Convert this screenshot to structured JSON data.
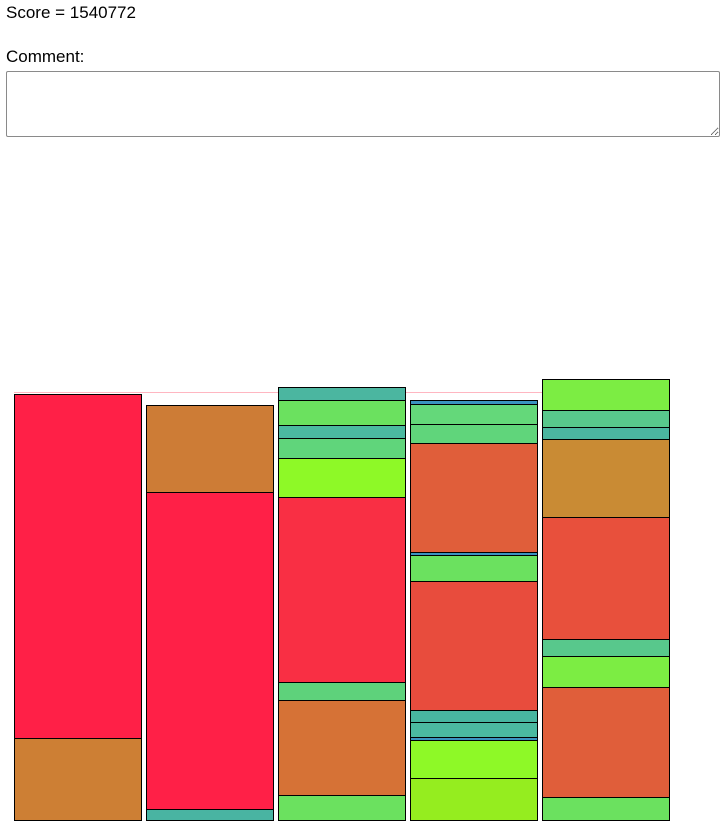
{
  "score_label": "Score = 1540772",
  "comment": {
    "label": "Comment:",
    "value": "",
    "placeholder": ""
  },
  "board": {
    "limit_line_color": "#ffb6c1",
    "block_border_color": "#000000",
    "columns": [
      {
        "blocks": [
          {
            "size": 344,
            "color": "#ff2047"
          },
          {
            "size": 82,
            "color": "#cd7f34"
          }
        ]
      },
      {
        "blocks": [
          {
            "size": 87,
            "color": "#cd7c36"
          },
          {
            "size": 317,
            "color": "#ff2047"
          },
          {
            "size": 11,
            "color": "#49b4a2"
          }
        ]
      },
      {
        "blocks": [
          {
            "size": 13,
            "color": "#4bb6a0"
          },
          {
            "size": 25,
            "color": "#6be15f"
          },
          {
            "size": 13,
            "color": "#4bb9a0"
          },
          {
            "size": 20,
            "color": "#60d57b"
          },
          {
            "size": 39,
            "color": "#8ef927"
          },
          {
            "size": 185,
            "color": "#f92f44"
          },
          {
            "size": 18,
            "color": "#5ed27b"
          },
          {
            "size": 95,
            "color": "#d67236"
          },
          {
            "size": 25,
            "color": "#6be15f"
          }
        ]
      },
      {
        "blocks": [
          {
            "size": 4,
            "color": "#3b93c0"
          },
          {
            "size": 20,
            "color": "#64d87a"
          },
          {
            "size": 19,
            "color": "#60d57b"
          },
          {
            "size": 109,
            "color": "#e05e3a"
          },
          {
            "size": 3,
            "color": "#3b93c0"
          },
          {
            "size": 26,
            "color": "#6be15f"
          },
          {
            "size": 129,
            "color": "#e84c3d"
          },
          {
            "size": 12,
            "color": "#48b6a0"
          },
          {
            "size": 15,
            "color": "#4bb9a0"
          },
          {
            "size": 3,
            "color": "#3b93c0"
          },
          {
            "size": 38,
            "color": "#8ef927"
          },
          {
            "size": 42,
            "color": "#95ed1f"
          }
        ]
      },
      {
        "blocks": [
          {
            "size": 31,
            "color": "#7ced43"
          },
          {
            "size": 17,
            "color": "#58c88c"
          },
          {
            "size": 12,
            "color": "#4bb6a0"
          },
          {
            "size": 78,
            "color": "#c98b34"
          },
          {
            "size": 122,
            "color": "#e8503c"
          },
          {
            "size": 17,
            "color": "#58c88c"
          },
          {
            "size": 31,
            "color": "#7ced43"
          },
          {
            "size": 110,
            "color": "#e05e3a"
          },
          {
            "size": 23,
            "color": "#6be15f"
          }
        ]
      }
    ]
  }
}
